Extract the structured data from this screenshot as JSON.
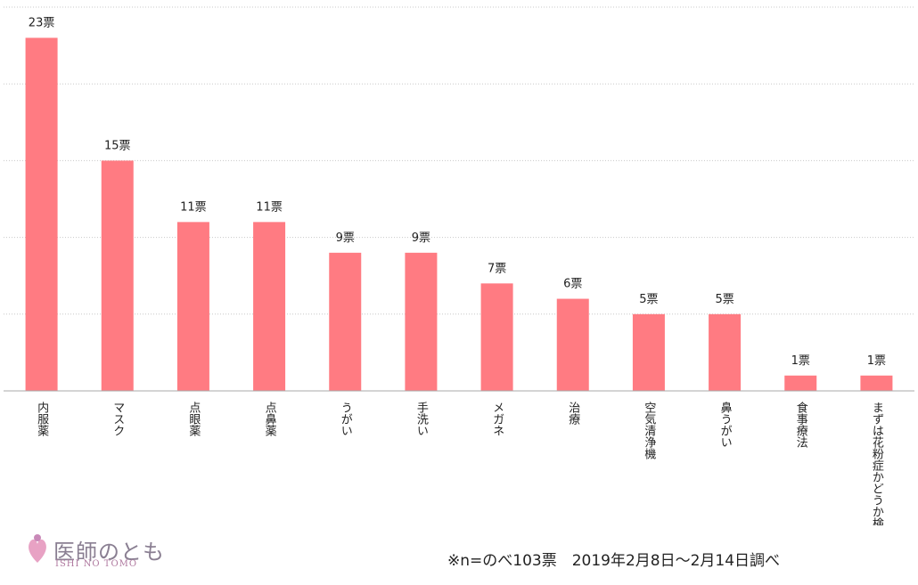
{
  "chart_data": {
    "type": "bar",
    "categories": [
      "内服薬",
      "マスク",
      "点眼薬",
      "点鼻薬",
      "うがい",
      "手洗い",
      "メガネ",
      "治療",
      "空気清浄機",
      "鼻うがい",
      "食事療法",
      "まずは花粉症かどうか検査する"
    ],
    "values": [
      23,
      15,
      11,
      11,
      9,
      9,
      7,
      6,
      5,
      5,
      1,
      1
    ],
    "data_labels": [
      "23票",
      "15票",
      "11票",
      "11票",
      "9票",
      "9票",
      "7票",
      "6票",
      "5票",
      "5票",
      "1票",
      "1票"
    ],
    "title": "",
    "xlabel": "",
    "ylabel": "",
    "ylim": [
      0,
      25
    ],
    "grid": true,
    "legend": "none",
    "bar_color": "#ff7b82",
    "label_orientation": "vertical"
  },
  "logo": {
    "name": "医師のとも",
    "sub": "ISHI NO TOMO",
    "icon": "heart-person-icon"
  },
  "note": "※n=のべ103票　2019年2月8日～2月14日調べ"
}
